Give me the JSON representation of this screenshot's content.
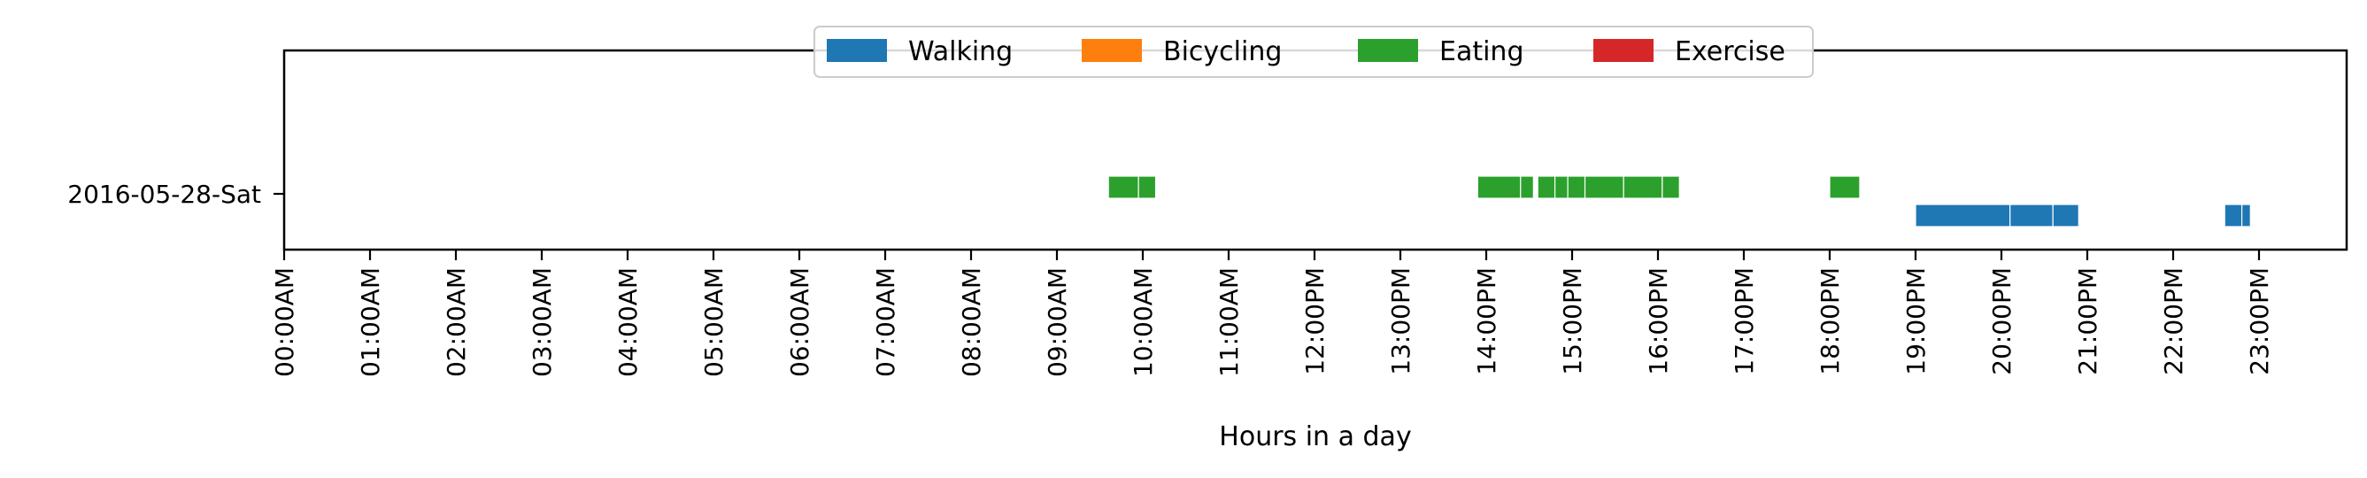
{
  "chart_data": {
    "type": "timeline",
    "xlabel": "Hours in a day",
    "ylabel": "",
    "xlim": [
      0,
      24
    ],
    "x_ticks": [
      {
        "hour": 0,
        "label": "00:00AM"
      },
      {
        "hour": 1,
        "label": "01:00AM"
      },
      {
        "hour": 2,
        "label": "02:00AM"
      },
      {
        "hour": 3,
        "label": "03:00AM"
      },
      {
        "hour": 4,
        "label": "04:00AM"
      },
      {
        "hour": 5,
        "label": "05:00AM"
      },
      {
        "hour": 6,
        "label": "06:00AM"
      },
      {
        "hour": 7,
        "label": "07:00AM"
      },
      {
        "hour": 8,
        "label": "08:00AM"
      },
      {
        "hour": 9,
        "label": "09:00AM"
      },
      {
        "hour": 10,
        "label": "10:00AM"
      },
      {
        "hour": 11,
        "label": "11:00AM"
      },
      {
        "hour": 12,
        "label": "12:00PM"
      },
      {
        "hour": 13,
        "label": "13:00PM"
      },
      {
        "hour": 14,
        "label": "14:00PM"
      },
      {
        "hour": 15,
        "label": "15:00PM"
      },
      {
        "hour": 16,
        "label": "16:00PM"
      },
      {
        "hour": 17,
        "label": "17:00PM"
      },
      {
        "hour": 18,
        "label": "18:00PM"
      },
      {
        "hour": 19,
        "label": "19:00PM"
      },
      {
        "hour": 20,
        "label": "20:00PM"
      },
      {
        "hour": 21,
        "label": "21:00PM"
      },
      {
        "hour": 22,
        "label": "22:00PM"
      },
      {
        "hour": 23,
        "label": "23:00PM"
      }
    ],
    "y_categories": [
      "2016-05-28-Sat"
    ],
    "legend": {
      "placement": "upper-center",
      "entries": [
        {
          "name": "Walking",
          "color": "#1f77b4"
        },
        {
          "name": "Bicycling",
          "color": "#ff7f0e"
        },
        {
          "name": "Eating",
          "color": "#2ca02c"
        },
        {
          "name": "Exercise",
          "color": "#d62728"
        }
      ]
    },
    "series": [
      {
        "name": "Walking",
        "row": "2016-05-28-Sat",
        "intervals": [
          [
            19.0,
            20.1
          ],
          [
            20.1,
            20.6
          ],
          [
            20.6,
            20.9
          ],
          [
            22.6,
            22.8
          ],
          [
            22.8,
            22.9
          ]
        ]
      },
      {
        "name": "Bicycling",
        "row": "2016-05-28-Sat",
        "intervals": []
      },
      {
        "name": "Eating",
        "row": "2016-05-28-Sat",
        "intervals": [
          [
            9.6,
            9.95
          ],
          [
            9.95,
            10.15
          ],
          [
            13.9,
            14.4
          ],
          [
            14.4,
            14.55
          ],
          [
            14.6,
            14.8
          ],
          [
            14.8,
            14.95
          ],
          [
            14.95,
            15.15
          ],
          [
            15.15,
            15.6
          ],
          [
            15.6,
            16.05
          ],
          [
            16.05,
            16.25
          ],
          [
            18.0,
            18.35
          ]
        ]
      },
      {
        "name": "Exercise",
        "row": "2016-05-28-Sat",
        "intervals": []
      }
    ]
  }
}
